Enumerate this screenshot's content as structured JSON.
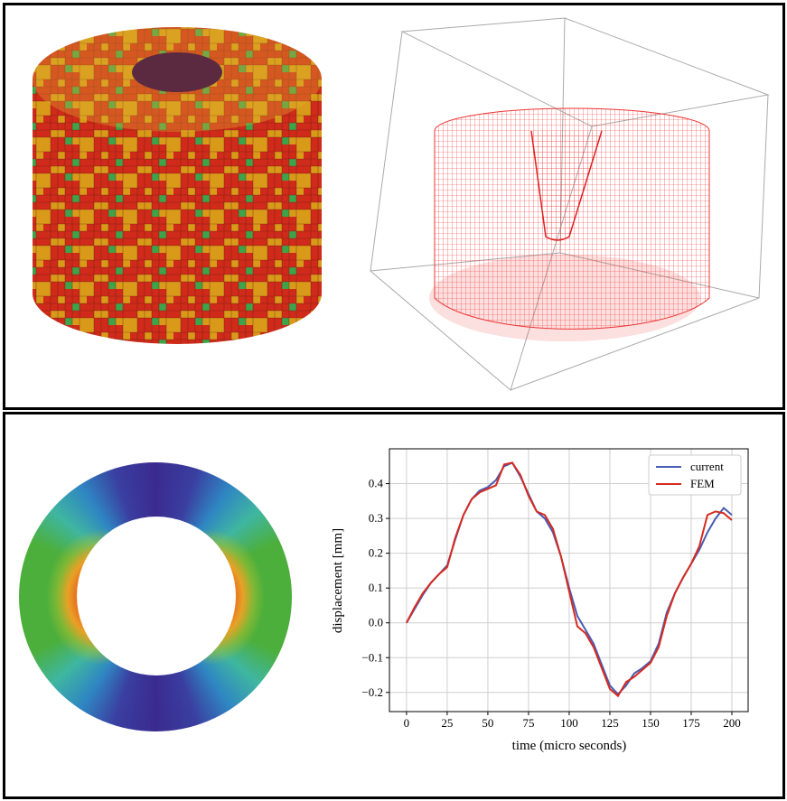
{
  "chart_data": {
    "type": "line",
    "xlabel": "time (micro seconds)",
    "ylabel": "displacement [mm]",
    "x": [
      0,
      5,
      10,
      15,
      20,
      25,
      30,
      35,
      40,
      45,
      50,
      55,
      60,
      65,
      70,
      75,
      80,
      85,
      90,
      95,
      100,
      105,
      110,
      115,
      120,
      125,
      130,
      135,
      140,
      145,
      150,
      155,
      160,
      165,
      170,
      175,
      180,
      185,
      190,
      195,
      200
    ],
    "series": [
      {
        "name": "current",
        "color": "#4a5bb2",
        "values": [
          0,
          0.04,
          0.08,
          0.115,
          0.14,
          0.165,
          0.24,
          0.31,
          0.355,
          0.38,
          0.39,
          0.41,
          0.45,
          0.46,
          0.42,
          0.37,
          0.32,
          0.3,
          0.26,
          0.19,
          0.1,
          0.02,
          -0.02,
          -0.06,
          -0.12,
          -0.18,
          -0.205,
          -0.18,
          -0.145,
          -0.13,
          -0.11,
          -0.06,
          0.03,
          0.085,
          0.13,
          0.17,
          0.21,
          0.26,
          0.3,
          0.33,
          0.31
        ]
      },
      {
        "name": "FEM",
        "color": "#d62a20",
        "values": [
          0,
          0.045,
          0.085,
          0.115,
          0.14,
          0.16,
          0.245,
          0.31,
          0.355,
          0.375,
          0.385,
          0.395,
          0.455,
          0.46,
          0.425,
          0.365,
          0.32,
          0.31,
          0.27,
          0.19,
          0.09,
          -0.01,
          -0.03,
          -0.07,
          -0.13,
          -0.19,
          -0.21,
          -0.17,
          -0.155,
          -0.135,
          -0.115,
          -0.07,
          0.02,
          0.085,
          0.13,
          0.17,
          0.22,
          0.31,
          0.32,
          0.315,
          0.295
        ]
      }
    ],
    "xlim": [
      -10.5,
      210
    ],
    "xticks": [
      0,
      25,
      50,
      75,
      100,
      125,
      150,
      175,
      200
    ],
    "ylim": [
      -0.255,
      0.5
    ],
    "yticks": [
      {
        "value": -0.2,
        "label": "−0.2"
      },
      {
        "value": -0.1,
        "label": "−0.1"
      },
      {
        "value": 0,
        "label": "0.0"
      },
      0.1,
      0.2,
      0.3,
      0.4
    ],
    "grid": true,
    "legend": "upper right"
  }
}
